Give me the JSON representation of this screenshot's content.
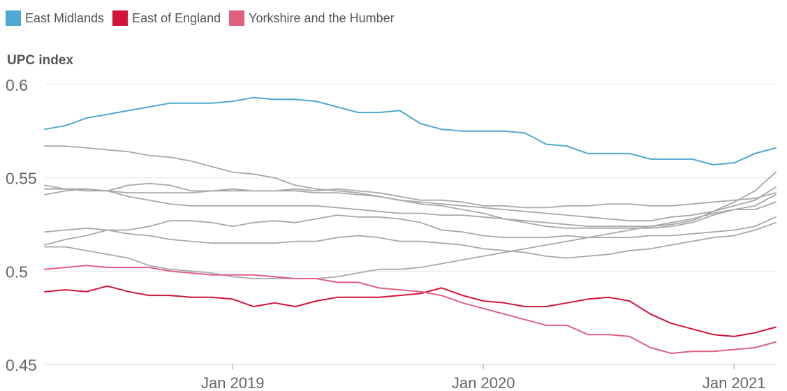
{
  "chart_data": {
    "type": "line",
    "title": "",
    "xlabel": "",
    "ylabel": "UPC index",
    "ylim": [
      0.45,
      0.6
    ],
    "yticks": [
      {
        "value": 0.6,
        "label": "0.6"
      },
      {
        "value": 0.55,
        "label": "0.55"
      },
      {
        "value": 0.5,
        "label": "0.5"
      },
      {
        "value": 0.45,
        "label": "0.45"
      }
    ],
    "xticks": [
      {
        "x": "2019-01",
        "label": "Jan 2019"
      },
      {
        "x": "2020-01",
        "label": "Jan 2020"
      },
      {
        "x": "2021-01",
        "label": "Jan 2021"
      }
    ],
    "x": [
      "2018-04",
      "2018-05",
      "2018-06",
      "2018-07",
      "2018-08",
      "2018-09",
      "2018-10",
      "2018-11",
      "2018-12",
      "2019-01",
      "2019-02",
      "2019-03",
      "2019-04",
      "2019-05",
      "2019-06",
      "2019-07",
      "2019-08",
      "2019-09",
      "2019-10",
      "2019-11",
      "2019-12",
      "2020-01",
      "2020-02",
      "2020-03",
      "2020-04",
      "2020-05",
      "2020-06",
      "2020-07",
      "2020-08",
      "2020-09",
      "2020-10",
      "2020-11",
      "2020-12",
      "2021-01",
      "2021-02",
      "2021-03"
    ],
    "grid": true,
    "legend": "top-left",
    "series": [
      {
        "name": "East Midlands",
        "color": "#4ea8cf",
        "highlight": true,
        "values": [
          0.576,
          0.578,
          0.582,
          0.584,
          0.586,
          0.588,
          0.59,
          0.59,
          0.59,
          0.591,
          0.593,
          0.592,
          0.592,
          0.591,
          0.588,
          0.585,
          0.585,
          0.586,
          0.579,
          0.576,
          0.575,
          0.575,
          0.575,
          0.574,
          0.568,
          0.567,
          0.563,
          0.563,
          0.563,
          0.56,
          0.56,
          0.56,
          0.557,
          0.558,
          0.563,
          0.566
        ]
      },
      {
        "name": "East of England",
        "color": "#d2143a",
        "highlight": true,
        "values": [
          0.489,
          0.49,
          0.489,
          0.492,
          0.489,
          0.487,
          0.487,
          0.486,
          0.486,
          0.485,
          0.481,
          0.483,
          0.481,
          0.484,
          0.486,
          0.486,
          0.486,
          0.487,
          0.488,
          0.491,
          0.487,
          0.484,
          0.483,
          0.481,
          0.481,
          0.483,
          0.485,
          0.486,
          0.484,
          0.477,
          0.472,
          0.469,
          0.466,
          0.465,
          0.467,
          0.47
        ]
      },
      {
        "name": "Yorkshire and the Humber",
        "color": "#e0607e",
        "highlight": true,
        "values": [
          0.501,
          0.502,
          0.503,
          0.502,
          0.502,
          0.502,
          0.5,
          0.499,
          0.498,
          0.498,
          0.498,
          0.497,
          0.496,
          0.496,
          0.494,
          0.494,
          0.491,
          0.49,
          0.489,
          0.487,
          0.483,
          0.48,
          0.477,
          0.474,
          0.471,
          0.471,
          0.466,
          0.466,
          0.465,
          0.459,
          0.456,
          0.457,
          0.457,
          0.458,
          0.459,
          0.462
        ]
      },
      {
        "name": "",
        "color": "#a8a8a8",
        "highlight": false,
        "values": [
          0.567,
          0.567,
          0.566,
          0.565,
          0.564,
          0.562,
          0.561,
          0.559,
          0.556,
          0.553,
          0.552,
          0.55,
          0.546,
          0.544,
          0.543,
          0.542,
          0.54,
          0.538,
          0.536,
          0.535,
          0.533,
          0.531,
          0.528,
          0.527,
          0.526,
          0.525,
          0.524,
          0.524,
          0.524,
          0.524,
          0.525,
          0.527,
          0.532,
          0.537,
          0.543,
          0.553
        ]
      },
      {
        "name": "",
        "color": "#a8a8a8",
        "highlight": false,
        "values": [
          0.546,
          0.544,
          0.543,
          0.543,
          0.542,
          0.542,
          0.542,
          0.542,
          0.543,
          0.543,
          0.543,
          0.543,
          0.543,
          0.542,
          0.542,
          0.541,
          0.54,
          0.538,
          0.537,
          0.536,
          0.535,
          0.534,
          0.533,
          0.532,
          0.531,
          0.53,
          0.529,
          0.528,
          0.527,
          0.527,
          0.529,
          0.53,
          0.532,
          0.535,
          0.538,
          0.545
        ]
      },
      {
        "name": "",
        "color": "#a8a8a8",
        "highlight": false,
        "values": [
          0.541,
          0.543,
          0.544,
          0.543,
          0.546,
          0.547,
          0.546,
          0.543,
          0.543,
          0.544,
          0.543,
          0.543,
          0.544,
          0.543,
          0.544,
          0.543,
          0.542,
          0.54,
          0.538,
          0.538,
          0.537,
          0.535,
          0.535,
          0.534,
          0.534,
          0.535,
          0.535,
          0.536,
          0.536,
          0.535,
          0.535,
          0.536,
          0.537,
          0.538,
          0.539,
          0.542
        ]
      },
      {
        "name": "",
        "color": "#a8a8a8",
        "highlight": false,
        "values": [
          0.544,
          0.544,
          0.544,
          0.543,
          0.54,
          0.538,
          0.536,
          0.535,
          0.535,
          0.535,
          0.535,
          0.535,
          0.535,
          0.535,
          0.534,
          0.533,
          0.532,
          0.531,
          0.531,
          0.53,
          0.53,
          0.529,
          0.528,
          0.526,
          0.524,
          0.523,
          0.523,
          0.523,
          0.523,
          0.523,
          0.524,
          0.526,
          0.53,
          0.533,
          0.535,
          0.541
        ]
      },
      {
        "name": "",
        "color": "#a8a8a8",
        "highlight": false,
        "values": [
          0.521,
          0.522,
          0.523,
          0.522,
          0.522,
          0.524,
          0.527,
          0.527,
          0.526,
          0.524,
          0.526,
          0.527,
          0.526,
          0.528,
          0.53,
          0.529,
          0.529,
          0.528,
          0.526,
          0.522,
          0.521,
          0.519,
          0.518,
          0.518,
          0.518,
          0.519,
          0.518,
          0.518,
          0.518,
          0.519,
          0.519,
          0.52,
          0.521,
          0.522,
          0.524,
          0.529
        ]
      },
      {
        "name": "",
        "color": "#a8a8a8",
        "highlight": false,
        "values": [
          0.514,
          0.517,
          0.519,
          0.522,
          0.52,
          0.519,
          0.517,
          0.516,
          0.515,
          0.515,
          0.515,
          0.515,
          0.516,
          0.516,
          0.518,
          0.519,
          0.518,
          0.516,
          0.516,
          0.515,
          0.514,
          0.512,
          0.511,
          0.51,
          0.508,
          0.507,
          0.508,
          0.509,
          0.511,
          0.512,
          0.514,
          0.516,
          0.518,
          0.519,
          0.522,
          0.526
        ]
      },
      {
        "name": "",
        "color": "#a8a8a8",
        "highlight": false,
        "values": [
          0.513,
          0.513,
          0.511,
          0.509,
          0.507,
          0.503,
          0.501,
          0.5,
          0.499,
          0.497,
          0.496,
          0.496,
          0.496,
          0.496,
          0.497,
          0.499,
          0.501,
          0.501,
          0.502,
          0.504,
          0.506,
          0.508,
          0.51,
          0.512,
          0.514,
          0.516,
          0.518,
          0.52,
          0.522,
          0.524,
          0.526,
          0.528,
          0.531,
          0.533,
          0.533,
          0.537
        ]
      }
    ]
  }
}
